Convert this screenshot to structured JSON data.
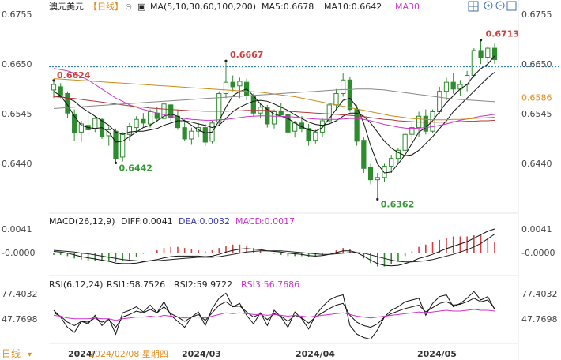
{
  "header": {
    "symbol": "澳元美元",
    "period": "【日线】",
    "ma_label": "MA(5,10,30,60,100,200)",
    "ma5_label": "MA5:0.6678",
    "ma10_label": "MA10:0.6642",
    "ma30_label": "MA30"
  },
  "toolbar": {
    "icons": [
      "grid-icon",
      "zoom-in-icon",
      "zoom-out-icon",
      "expand-icon"
    ]
  },
  "colors": {
    "up": "#2e8b2e",
    "down": "#2e8b2e",
    "ma5": "#111111",
    "ma10": "#111111",
    "ma30": "#cc33cc",
    "ma60": "#b03a3a",
    "ma100": "#cc8a1a",
    "ma200": "#888888",
    "annotation_high": "#d04040",
    "annotation_low": "#3a9a3a",
    "current_price": "#1b6fa8"
  },
  "price_axis": {
    "ticks": [
      "0.6755",
      "0.6650",
      "0.6545",
      "0.6440"
    ],
    "marker": "0.6586"
  },
  "annotations": {
    "a1": "0.6624",
    "a2": "0.6667",
    "a3": "0.6442",
    "a4": "0.6362",
    "a5": "0.6713"
  },
  "macd": {
    "label": "MACD(26,12,9)",
    "diff": "DIFF:0.0041",
    "dea": "DEA:0.0032",
    "macd": "MACD:0.0017",
    "ticks": [
      "0.0041",
      "-0.0000"
    ]
  },
  "rsi": {
    "label": "RSI(6,12,24)",
    "rsi1": "RSI1:58.7526",
    "rsi2": "RSI2:59.9722",
    "rsi3": "RSI3:56.7686",
    "ticks": [
      "77.4032",
      "47.7698"
    ]
  },
  "footer": {
    "period_tab": "日线",
    "dates": [
      "2024/",
      "2024/02/08 星期四",
      "2024/03",
      "2024/04",
      "2024/05"
    ]
  },
  "chart_data": {
    "type": "candlestick",
    "instrument": "澳元美元",
    "ylim": [
      0.634,
      0.677
    ],
    "candles": [
      [
        0.6603,
        0.6624,
        0.6585,
        0.6615
      ],
      [
        0.661,
        0.6618,
        0.6585,
        0.6592
      ],
      [
        0.6595,
        0.66,
        0.654,
        0.6552
      ],
      [
        0.655,
        0.656,
        0.649,
        0.6508
      ],
      [
        0.651,
        0.6535,
        0.6488,
        0.6528
      ],
      [
        0.6525,
        0.6548,
        0.6502,
        0.6515
      ],
      [
        0.6518,
        0.6545,
        0.651,
        0.654
      ],
      [
        0.6538,
        0.654,
        0.6495,
        0.65
      ],
      [
        0.6502,
        0.6522,
        0.648,
        0.6515
      ],
      [
        0.6512,
        0.6518,
        0.6442,
        0.6452
      ],
      [
        0.6455,
        0.651,
        0.6445,
        0.6505
      ],
      [
        0.6505,
        0.653,
        0.649,
        0.6522
      ],
      [
        0.652,
        0.6545,
        0.6512,
        0.6538
      ],
      [
        0.6538,
        0.6552,
        0.652,
        0.653
      ],
      [
        0.6528,
        0.656,
        0.652,
        0.6555
      ],
      [
        0.6552,
        0.6565,
        0.6532,
        0.654
      ],
      [
        0.654,
        0.658,
        0.6535,
        0.6572
      ],
      [
        0.657,
        0.6572,
        0.6535,
        0.6542
      ],
      [
        0.6545,
        0.656,
        0.6515,
        0.652
      ],
      [
        0.652,
        0.6538,
        0.649,
        0.6495
      ],
      [
        0.6495,
        0.652,
        0.6482,
        0.6512
      ],
      [
        0.6512,
        0.653,
        0.65,
        0.652
      ],
      [
        0.652,
        0.6528,
        0.648,
        0.6488
      ],
      [
        0.649,
        0.6535,
        0.6485,
        0.653
      ],
      [
        0.6532,
        0.66,
        0.6525,
        0.6595
      ],
      [
        0.6595,
        0.6667,
        0.6585,
        0.662
      ],
      [
        0.662,
        0.6635,
        0.66,
        0.661
      ],
      [
        0.6612,
        0.663,
        0.6585,
        0.6622
      ],
      [
        0.662,
        0.6628,
        0.658,
        0.659
      ],
      [
        0.6588,
        0.6595,
        0.6545,
        0.6552
      ],
      [
        0.6552,
        0.6575,
        0.654,
        0.6565
      ],
      [
        0.6565,
        0.657,
        0.652,
        0.6528
      ],
      [
        0.6528,
        0.656,
        0.6518,
        0.6555
      ],
      [
        0.6555,
        0.6575,
        0.6545,
        0.6548
      ],
      [
        0.6548,
        0.6555,
        0.65,
        0.651
      ],
      [
        0.6512,
        0.6535,
        0.6498,
        0.653
      ],
      [
        0.653,
        0.6545,
        0.651,
        0.6518
      ],
      [
        0.6518,
        0.6528,
        0.648,
        0.6492
      ],
      [
        0.6492,
        0.6515,
        0.6485,
        0.651
      ],
      [
        0.651,
        0.654,
        0.65,
        0.6535
      ],
      [
        0.6535,
        0.6575,
        0.6528,
        0.657
      ],
      [
        0.657,
        0.6605,
        0.656,
        0.6595
      ],
      [
        0.6595,
        0.664,
        0.6588,
        0.6625
      ],
      [
        0.6625,
        0.6632,
        0.6555,
        0.656
      ],
      [
        0.656,
        0.657,
        0.648,
        0.649
      ],
      [
        0.6492,
        0.65,
        0.642,
        0.643
      ],
      [
        0.6432,
        0.644,
        0.6395,
        0.6405
      ],
      [
        0.6405,
        0.642,
        0.6362,
        0.641
      ],
      [
        0.641,
        0.644,
        0.64,
        0.6435
      ],
      [
        0.6435,
        0.646,
        0.642,
        0.6452
      ],
      [
        0.6452,
        0.6475,
        0.644,
        0.647
      ],
      [
        0.647,
        0.651,
        0.6465,
        0.6505
      ],
      [
        0.6505,
        0.653,
        0.649,
        0.652
      ],
      [
        0.652,
        0.6555,
        0.65,
        0.6545
      ],
      [
        0.6545,
        0.656,
        0.6505,
        0.6512
      ],
      [
        0.6512,
        0.656,
        0.6508,
        0.6555
      ],
      [
        0.6555,
        0.661,
        0.655,
        0.66
      ],
      [
        0.66,
        0.663,
        0.658,
        0.662
      ],
      [
        0.662,
        0.664,
        0.6595,
        0.6605
      ],
      [
        0.6605,
        0.6625,
        0.659,
        0.6615
      ],
      [
        0.6615,
        0.6645,
        0.66,
        0.6635
      ],
      [
        0.6635,
        0.6695,
        0.663,
        0.669
      ],
      [
        0.669,
        0.6713,
        0.666,
        0.6675
      ],
      [
        0.6675,
        0.67,
        0.6655,
        0.6695
      ],
      [
        0.6695,
        0.6705,
        0.666,
        0.667
      ]
    ],
    "ma_lines": [
      {
        "name": "MA5",
        "values": [
          0.66,
          0.659,
          0.657,
          0.6545,
          0.6525,
          0.652,
          0.6518,
          0.652,
          0.651,
          0.6488,
          0.649,
          0.65,
          0.651,
          0.652,
          0.6525,
          0.6535,
          0.6545,
          0.655,
          0.6545,
          0.6535,
          0.6525,
          0.6515,
          0.6508,
          0.651,
          0.6535,
          0.6565,
          0.659,
          0.66,
          0.6605,
          0.659,
          0.6572,
          0.656,
          0.655,
          0.6545,
          0.654,
          0.653,
          0.6522,
          0.6515,
          0.6512,
          0.652,
          0.654,
          0.656,
          0.658,
          0.6585,
          0.6565,
          0.653,
          0.648,
          0.644,
          0.642,
          0.6422,
          0.644,
          0.646,
          0.6485,
          0.651,
          0.652,
          0.6535,
          0.6555,
          0.6575,
          0.659,
          0.6605,
          0.6615,
          0.6635,
          0.665,
          0.666,
          0.6678
        ]
      },
      {
        "name": "MA10",
        "values": [
          0.659,
          0.6588,
          0.6585,
          0.6578,
          0.6565,
          0.6555,
          0.6545,
          0.6535,
          0.6525,
          0.651,
          0.6505,
          0.651,
          0.6512,
          0.6512,
          0.6515,
          0.6518,
          0.6525,
          0.653,
          0.6535,
          0.6535,
          0.6532,
          0.6528,
          0.6525,
          0.652,
          0.6525,
          0.654,
          0.6555,
          0.6565,
          0.6572,
          0.6578,
          0.658,
          0.6578,
          0.6572,
          0.6565,
          0.6558,
          0.6548,
          0.654,
          0.6532,
          0.6527,
          0.6525,
          0.6528,
          0.6535,
          0.6545,
          0.6552,
          0.6552,
          0.6545,
          0.653,
          0.651,
          0.649,
          0.6475,
          0.6465,
          0.6458,
          0.646,
          0.647,
          0.6485,
          0.65,
          0.6518,
          0.6535,
          0.6555,
          0.657,
          0.6585,
          0.66,
          0.6615,
          0.663,
          0.6642
        ]
      },
      {
        "name": "MA30",
        "values": [
          0.665,
          0.6648,
          0.6645,
          0.664,
          0.6632,
          0.6625,
          0.6615,
          0.6605,
          0.6595,
          0.6585,
          0.6578,
          0.657,
          0.6565,
          0.656,
          0.6556,
          0.6552,
          0.6548,
          0.6545,
          0.6542,
          0.654,
          0.6538,
          0.6537,
          0.6536,
          0.6536,
          0.6537,
          0.6538,
          0.654,
          0.6542,
          0.6544,
          0.6545,
          0.6546,
          0.6546,
          0.6545,
          0.6545,
          0.6544,
          0.6543,
          0.6542,
          0.654,
          0.6539,
          0.6538,
          0.6538,
          0.6538,
          0.6539,
          0.654,
          0.654,
          0.6538,
          0.6535,
          0.6531,
          0.6527,
          0.6524,
          0.6521,
          0.6519,
          0.6518,
          0.6519,
          0.652,
          0.6522,
          0.6525,
          0.6528,
          0.6532,
          0.6536,
          0.6539,
          0.6542,
          0.6545,
          0.6547,
          0.6549
        ]
      },
      {
        "name": "MA60",
        "values": [
          0.6588,
          0.6587,
          0.6585,
          0.6584,
          0.6582,
          0.658,
          0.6578,
          0.6576,
          0.6574,
          0.6572,
          0.657,
          0.6568,
          0.6566,
          0.6565,
          0.6563,
          0.6562,
          0.6561,
          0.656,
          0.6559,
          0.6558,
          0.6557,
          0.6557,
          0.6556,
          0.6556,
          0.6556,
          0.6556,
          0.6557,
          0.6557,
          0.6558,
          0.6558,
          0.6558,
          0.6558,
          0.6557,
          0.6557,
          0.6556,
          0.6555,
          0.6554,
          0.6553,
          0.6552,
          0.6551,
          0.655,
          0.6549,
          0.6548,
          0.6547,
          0.6546,
          0.6544,
          0.6542,
          0.654,
          0.6538,
          0.6537,
          0.6535,
          0.6534,
          0.6533,
          0.6532,
          0.6532,
          0.6532,
          0.6532,
          0.6532,
          0.6533,
          0.6533,
          0.6534,
          0.6534,
          0.6535,
          0.6535,
          0.6536
        ]
      },
      {
        "name": "MA100",
        "values": [
          0.6628,
          0.6627,
          0.6626,
          0.6625,
          0.6624,
          0.6623,
          0.6622,
          0.6621,
          0.662,
          0.6619,
          0.6618,
          0.6617,
          0.6616,
          0.6615,
          0.6614,
          0.6613,
          0.6612,
          0.6611,
          0.661,
          0.6609,
          0.6608,
          0.6607,
          0.6606,
          0.6605,
          0.6604,
          0.6603,
          0.6602,
          0.6601,
          0.66,
          0.6599,
          0.6598,
          0.6596,
          0.6594,
          0.6592,
          0.659,
          0.6588,
          0.6585,
          0.6582,
          0.6579,
          0.6576,
          0.6573,
          0.657,
          0.6567,
          0.6564,
          0.6561,
          0.6558,
          0.6555,
          0.6552,
          0.6549,
          0.6546,
          0.6544,
          0.6542,
          0.654,
          0.6539,
          0.6538,
          0.6537,
          0.6537,
          0.6537,
          0.6538,
          0.6538,
          0.6539,
          0.654,
          0.6541,
          0.6542,
          0.6543
        ]
      },
      {
        "name": "MA200",
        "values": [
          0.6562,
          0.6563,
          0.6564,
          0.6565,
          0.6566,
          0.6567,
          0.6568,
          0.6569,
          0.657,
          0.6571,
          0.6572,
          0.6573,
          0.6574,
          0.6575,
          0.6576,
          0.6577,
          0.6578,
          0.6579,
          0.658,
          0.6581,
          0.6582,
          0.6583,
          0.6584,
          0.6585,
          0.6586,
          0.6587,
          0.6588,
          0.6589,
          0.659,
          0.6591,
          0.6592,
          0.6593,
          0.6594,
          0.6595,
          0.6596,
          0.6597,
          0.6598,
          0.6599,
          0.66,
          0.6601,
          0.6602,
          0.6603,
          0.6604,
          0.6604,
          0.6605,
          0.6605,
          0.6605,
          0.6604,
          0.6603,
          0.6601,
          0.6599,
          0.6597,
          0.6595,
          0.6593,
          0.6591,
          0.6589,
          0.6587,
          0.6585,
          0.6583,
          0.6582,
          0.6581,
          0.658,
          0.6579,
          0.6578,
          0.6577
        ]
      }
    ],
    "current_price": 0.6654,
    "macd_series": {
      "diff": [
        0.0002,
        0.0001,
        -0.0001,
        -0.0004,
        -0.0007,
        -0.0009,
        -0.0011,
        -0.0013,
        -0.0015,
        -0.0018,
        -0.0019,
        -0.0019,
        -0.0018,
        -0.0016,
        -0.0014,
        -0.0012,
        -0.0009,
        -0.0007,
        -0.0006,
        -0.0006,
        -0.0006,
        -0.0006,
        -0.0007,
        -0.0006,
        -0.0003,
        0.0001,
        0.0004,
        0.0006,
        0.0007,
        0.0006,
        0.0005,
        0.0003,
        0.0002,
        0.0001,
        -0.0001,
        -0.0002,
        -0.0003,
        -0.0005,
        -0.0006,
        -0.0005,
        -0.0003,
        0.0,
        0.0003,
        0.0003,
        0.0,
        -0.0006,
        -0.0013,
        -0.0019,
        -0.0022,
        -0.0023,
        -0.0022,
        -0.0019,
        -0.0015,
        -0.001,
        -0.0007,
        -0.0003,
        0.0002,
        0.0007,
        0.0011,
        0.0015,
        0.0019,
        0.0025,
        0.0031,
        0.0037,
        0.0041
      ],
      "dea": [
        0.0004,
        0.0003,
        0.0002,
        0.0001,
        -0.0001,
        -0.0002,
        -0.0004,
        -0.0006,
        -0.0008,
        -0.001,
        -0.0012,
        -0.0013,
        -0.0014,
        -0.0015,
        -0.0014,
        -0.0014,
        -0.0013,
        -0.0012,
        -0.0011,
        -0.001,
        -0.0009,
        -0.0008,
        -0.0008,
        -0.0008,
        -0.0007,
        -0.0005,
        -0.0003,
        -0.0001,
        0.0001,
        0.0002,
        0.0003,
        0.0003,
        0.0003,
        0.0003,
        0.0002,
        0.0001,
        0.0,
        -0.0001,
        -0.0002,
        -0.0003,
        -0.0003,
        -0.0002,
        -0.0001,
        0.0,
        0.0,
        -0.0001,
        -0.0004,
        -0.0007,
        -0.001,
        -0.0013,
        -0.0015,
        -0.0016,
        -0.0016,
        -0.0015,
        -0.0014,
        -0.0012,
        -0.0009,
        -0.0006,
        -0.0003,
        0.0001,
        0.0005,
        0.001,
        0.0016,
        0.0024,
        0.0032
      ]
    },
    "rsi_series": {
      "rsi1": [
        58,
        50,
        38,
        32,
        45,
        42,
        52,
        40,
        48,
        30,
        55,
        58,
        62,
        56,
        64,
        55,
        68,
        52,
        45,
        38,
        50,
        56,
        40,
        60,
        72,
        78,
        62,
        66,
        52,
        42,
        55,
        40,
        58,
        50,
        38,
        56,
        48,
        36,
        52,
        62,
        70,
        74,
        76,
        40,
        30,
        26,
        24,
        35,
        50,
        58,
        62,
        68,
        70,
        72,
        52,
        66,
        74,
        76,
        62,
        66,
        72,
        80,
        70,
        74,
        59
      ],
      "rsi2": [
        55,
        51,
        44,
        40,
        45,
        44,
        49,
        44,
        47,
        38,
        50,
        53,
        57,
        55,
        59,
        55,
        62,
        54,
        50,
        45,
        50,
        53,
        46,
        55,
        64,
        68,
        62,
        63,
        56,
        50,
        54,
        47,
        54,
        51,
        45,
        52,
        49,
        43,
        50,
        55,
        60,
        64,
        66,
        52,
        44,
        40,
        38,
        42,
        50,
        54,
        57,
        60,
        62,
        64,
        56,
        61,
        66,
        68,
        64,
        65,
        68,
        72,
        68,
        70,
        60
      ],
      "rsi3": [
        52,
        51,
        49,
        48,
        48,
        48,
        49,
        48,
        48,
        46,
        48,
        49,
        50,
        50,
        51,
        50,
        52,
        51,
        50,
        49,
        50,
        50,
        49,
        51,
        53,
        55,
        54,
        55,
        54,
        53,
        53,
        52,
        53,
        52,
        51,
        52,
        51,
        50,
        51,
        52,
        53,
        54,
        55,
        53,
        51,
        50,
        49,
        50,
        51,
        52,
        53,
        54,
        55,
        56,
        55,
        56,
        57,
        58,
        57,
        57,
        58,
        59,
        58,
        58,
        57
      ]
    }
  }
}
